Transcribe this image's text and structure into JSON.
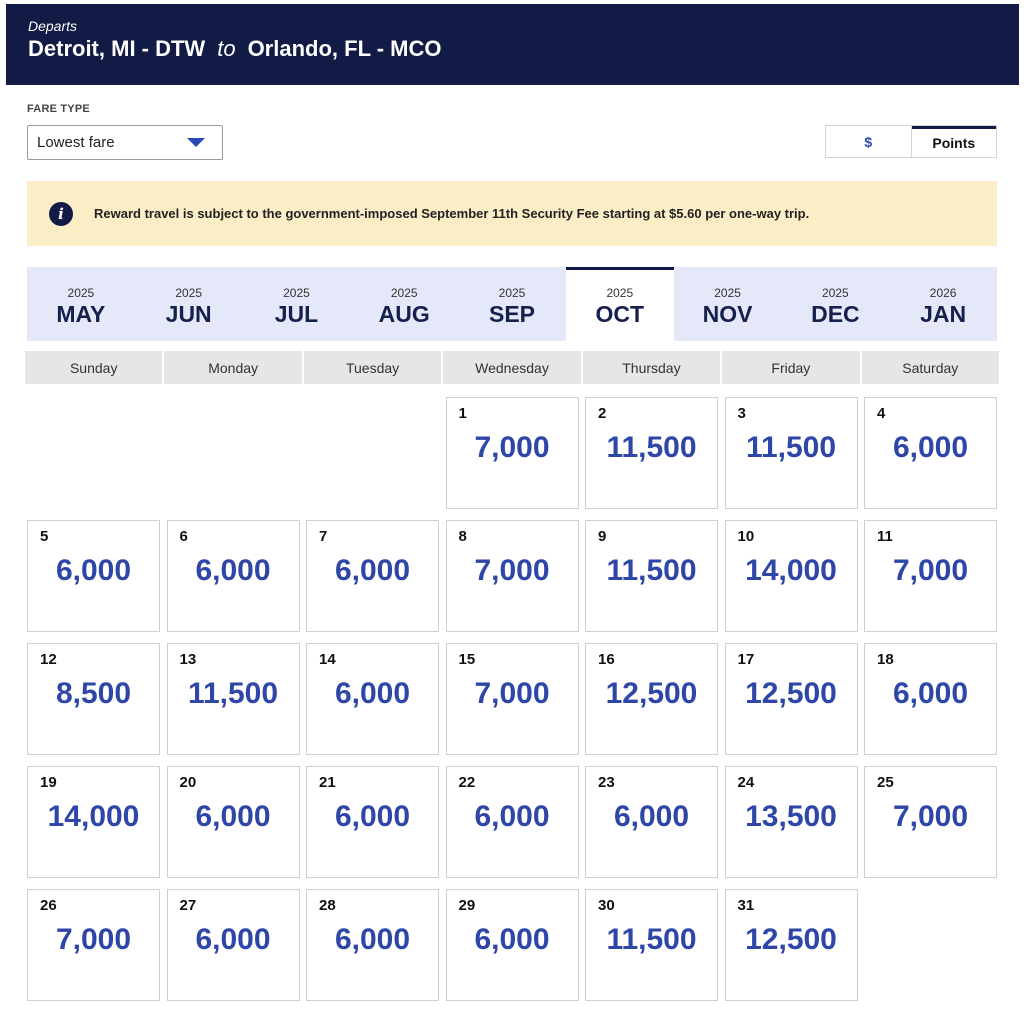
{
  "header": {
    "departs_label": "Departs",
    "origin": "Detroit, MI - DTW",
    "connector": "to",
    "destination": "Orlando, FL - MCO"
  },
  "fare_type": {
    "label": "FARE TYPE",
    "selected": "Lowest fare"
  },
  "currency_toggle": {
    "options": [
      "$",
      "Points"
    ],
    "selected": "Points"
  },
  "notice": {
    "icon": "info-icon",
    "message": "Reward travel is subject to the government-imposed September 11th Security Fee starting at $5.60 per one-way trip."
  },
  "months": [
    {
      "year": "2025",
      "month": "MAY"
    },
    {
      "year": "2025",
      "month": "JUN"
    },
    {
      "year": "2025",
      "month": "JUL"
    },
    {
      "year": "2025",
      "month": "AUG"
    },
    {
      "year": "2025",
      "month": "SEP"
    },
    {
      "year": "2025",
      "month": "OCT",
      "active": true
    },
    {
      "year": "2025",
      "month": "NOV"
    },
    {
      "year": "2025",
      "month": "DEC"
    },
    {
      "year": "2026",
      "month": "JAN"
    }
  ],
  "weekdays": [
    "Sunday",
    "Monday",
    "Tuesday",
    "Wednesday",
    "Thursday",
    "Friday",
    "Saturday"
  ],
  "calendar": {
    "leading_blanks": 3,
    "days": [
      {
        "day": "1",
        "price": "7,000"
      },
      {
        "day": "2",
        "price": "11,500"
      },
      {
        "day": "3",
        "price": "11,500"
      },
      {
        "day": "4",
        "price": "6,000"
      },
      {
        "day": "5",
        "price": "6,000"
      },
      {
        "day": "6",
        "price": "6,000"
      },
      {
        "day": "7",
        "price": "6,000"
      },
      {
        "day": "8",
        "price": "7,000"
      },
      {
        "day": "9",
        "price": "11,500"
      },
      {
        "day": "10",
        "price": "14,000"
      },
      {
        "day": "11",
        "price": "7,000"
      },
      {
        "day": "12",
        "price": "8,500"
      },
      {
        "day": "13",
        "price": "11,500"
      },
      {
        "day": "14",
        "price": "6,000"
      },
      {
        "day": "15",
        "price": "7,000"
      },
      {
        "day": "16",
        "price": "12,500"
      },
      {
        "day": "17",
        "price": "12,500"
      },
      {
        "day": "18",
        "price": "6,000"
      },
      {
        "day": "19",
        "price": "14,000"
      },
      {
        "day": "20",
        "price": "6,000"
      },
      {
        "day": "21",
        "price": "6,000"
      },
      {
        "day": "22",
        "price": "6,000"
      },
      {
        "day": "23",
        "price": "6,000"
      },
      {
        "day": "24",
        "price": "13,500"
      },
      {
        "day": "25",
        "price": "7,000"
      },
      {
        "day": "26",
        "price": "7,000"
      },
      {
        "day": "27",
        "price": "6,000"
      },
      {
        "day": "28",
        "price": "6,000"
      },
      {
        "day": "29",
        "price": "6,000"
      },
      {
        "day": "30",
        "price": "11,500"
      },
      {
        "day": "31",
        "price": "12,500"
      }
    ]
  },
  "colors": {
    "header_bg": "#111b46",
    "price_blue": "#2e46a8",
    "notice_bg": "#fbedc6",
    "month_bar_bg": "#e4e8f8"
  }
}
